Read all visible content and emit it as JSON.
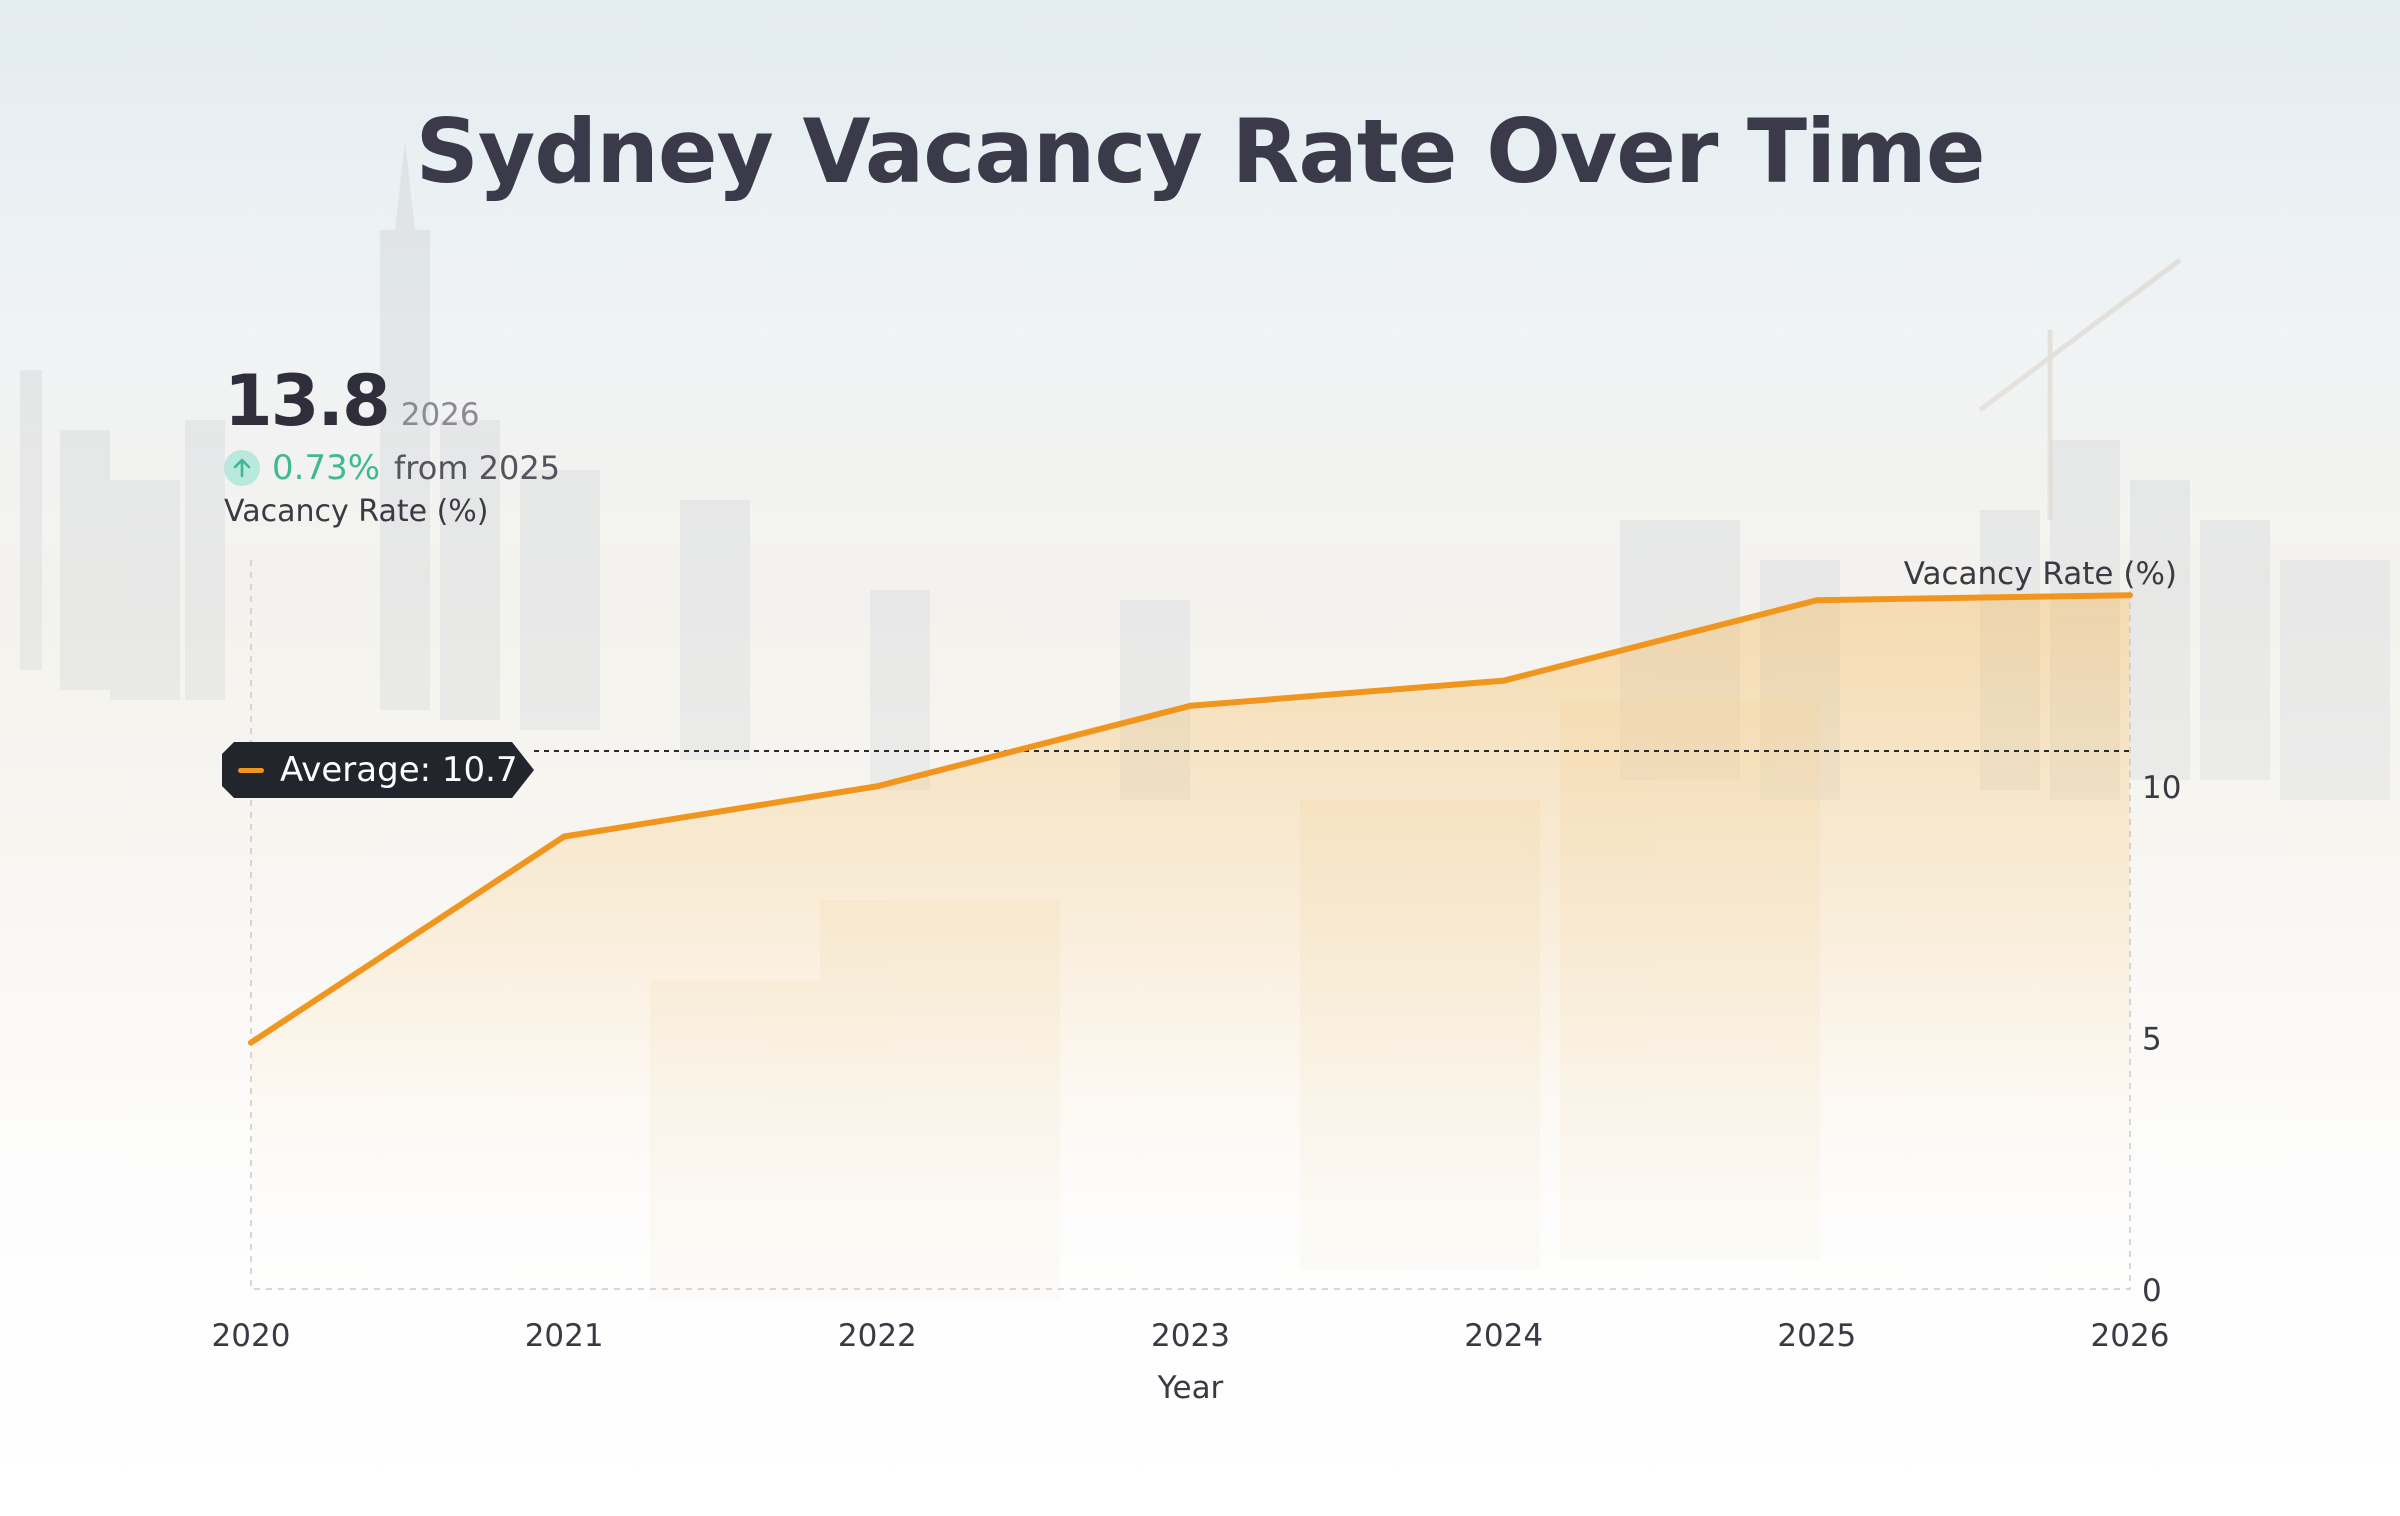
{
  "title": "Sydney Vacancy Rate Over Time",
  "kpi": {
    "value": "13.8",
    "year": "2026",
    "change": "0.73%",
    "change_direction": "up",
    "from_text": "from 2025",
    "label": "Vacancy Rate (%)"
  },
  "average": {
    "label": "Average: 10.7",
    "value": 10.7
  },
  "colors": {
    "line": "#f0961f",
    "positive": "#3fb896",
    "badge_bg": "#22252b",
    "title": "#3b3a4a"
  },
  "chart_data": {
    "type": "area",
    "title": "Sydney Vacancy Rate Over Time",
    "xlabel": "Year",
    "ylabel": "Vacancy Rate (%)",
    "x": [
      "2020",
      "2021",
      "2022",
      "2023",
      "2024",
      "2025",
      "2026"
    ],
    "series": [
      {
        "name": "Vacancy Rate (%)",
        "values": [
          4.9,
          9.0,
          10.0,
          11.6,
          12.1,
          13.7,
          13.8
        ]
      }
    ],
    "yticks": [
      "0",
      "5",
      "10"
    ],
    "ylim": [
      0,
      14.5
    ],
    "y_axis_position": "right",
    "reference_line": {
      "label": "Average",
      "value": 10.7
    },
    "grid": false,
    "legend": "none"
  }
}
